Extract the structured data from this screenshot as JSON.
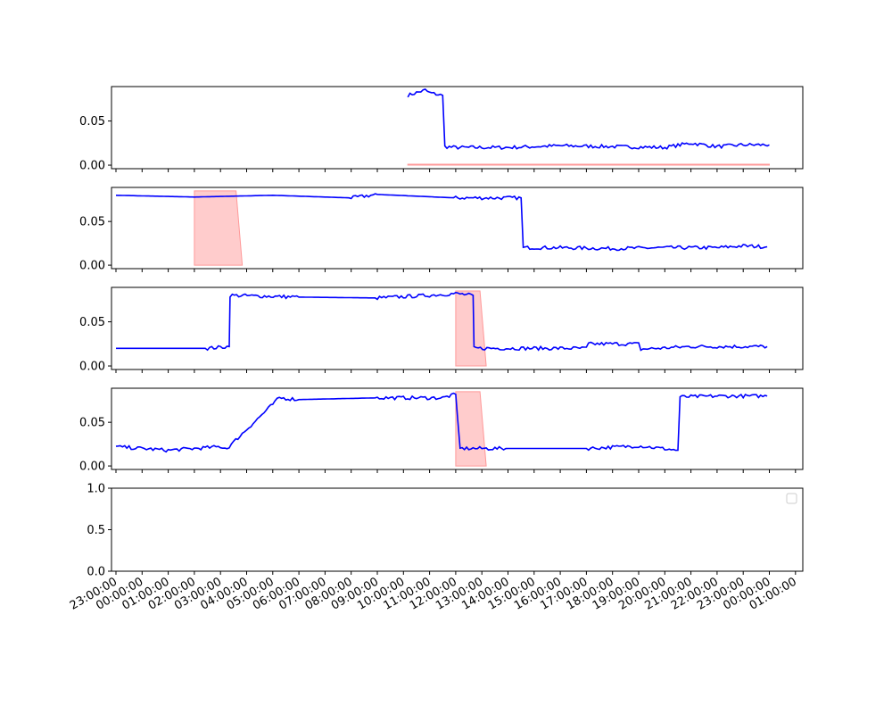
{
  "chart_data": [
    {
      "type": "line",
      "x": [
        "10:10",
        "10:50",
        "11:00",
        "11:30",
        "11:35",
        "12:00",
        "14:00",
        "16:00",
        "18:00",
        "20:00",
        "21:00",
        "22:00",
        "23:00",
        "00:00"
      ],
      "series": [
        {
          "color": "#0000ff",
          "values": [
            0.079,
            0.085,
            0.082,
            0.079,
            0.021,
            0.02,
            0.02,
            0.022,
            0.021,
            0.02,
            0.025,
            0.021,
            0.023,
            0.023
          ]
        }
      ],
      "band": {
        "color": "#ff9999",
        "x": [
          "10:10",
          "00:00"
        ],
        "y": [
          0.0,
          0.001
        ]
      },
      "yticks": [
        "0.00",
        "0.05"
      ],
      "ylim": [
        -0.004,
        0.089
      ]
    },
    {
      "type": "line",
      "x": [
        "23:00",
        "02:00",
        "05:00",
        "08:00",
        "09:00",
        "12:00",
        "14:30",
        "14:35",
        "16:00",
        "18:00",
        "20:00",
        "22:00",
        "23:00",
        "23:55"
      ],
      "series": [
        {
          "color": "#0000ff",
          "values": [
            0.08,
            0.078,
            0.08,
            0.077,
            0.081,
            0.077,
            0.077,
            0.02,
            0.02,
            0.019,
            0.02,
            0.02,
            0.022,
            0.021
          ]
        }
      ],
      "band": {
        "color": "#ff9999",
        "x": [
          "02:00",
          "03:50"
        ],
        "y": [
          0.0,
          0.085
        ]
      },
      "yticks": [
        "0.00",
        "0.05"
      ],
      "ylim": [
        -0.004,
        0.089
      ]
    },
    {
      "type": "line",
      "x": [
        "23:00",
        "02:30",
        "03:20",
        "03:22",
        "06:00",
        "09:00",
        "11:00",
        "12:00",
        "12:40",
        "12:42",
        "15:00",
        "17:00",
        "17:05",
        "19:00",
        "19:05",
        "21:00",
        "23:00",
        "23:55"
      ],
      "series": [
        {
          "color": "#0000ff",
          "values": [
            0.02,
            0.02,
            0.022,
            0.08,
            0.078,
            0.077,
            0.08,
            0.082,
            0.08,
            0.02,
            0.02,
            0.02,
            0.025,
            0.025,
            0.019,
            0.022,
            0.022,
            0.022
          ]
        }
      ],
      "band": {
        "color": "#ff9999",
        "x": [
          "12:00",
          "13:10"
        ],
        "y": [
          0.0,
          0.085
        ]
      },
      "yticks": [
        "0.00",
        "0.05"
      ],
      "ylim": [
        -0.004,
        0.089
      ]
    },
    {
      "type": "line",
      "x": [
        "23:00",
        "01:00",
        "03:00",
        "03:15",
        "05:15",
        "06:00",
        "09:00",
        "11:30",
        "12:00",
        "12:10",
        "12:15",
        "14:00",
        "17:00",
        "19:00",
        "20:30",
        "20:35",
        "22:00",
        "23:55"
      ],
      "series": [
        {
          "color": "#0000ff",
          "values": [
            0.022,
            0.018,
            0.022,
            0.02,
            0.078,
            0.076,
            0.078,
            0.078,
            0.082,
            0.02,
            0.02,
            0.02,
            0.02,
            0.023,
            0.018,
            0.079,
            0.08,
            0.08
          ]
        }
      ],
      "band": {
        "color": "#ff9999",
        "x": [
          "12:00",
          "13:10"
        ],
        "y": [
          0.0,
          0.085
        ]
      },
      "yticks": [
        "0.00",
        "0.05"
      ],
      "ylim": [
        -0.004,
        0.089
      ]
    },
    {
      "type": "line",
      "series": [],
      "legend": "upper right",
      "yticks": [
        "0.0",
        "0.5",
        "1.0"
      ],
      "ylim": [
        0.0,
        1.0
      ]
    }
  ],
  "xaxis": {
    "tick_labels": [
      "23:00:00",
      "00:00:00",
      "01:00:00",
      "02:00:00",
      "03:00:00",
      "04:00:00",
      "05:00:00",
      "06:00:00",
      "07:00:00",
      "08:00:00",
      "09:00:00",
      "10:00:00",
      "11:00:00",
      "12:00:00",
      "13:00:00",
      "14:00:00",
      "15:00:00",
      "16:00:00",
      "17:00:00",
      "18:00:00",
      "19:00:00",
      "20:00:00",
      "21:00:00",
      "22:00:00",
      "23:00:00",
      "00:00:00",
      "01:00:00"
    ]
  }
}
